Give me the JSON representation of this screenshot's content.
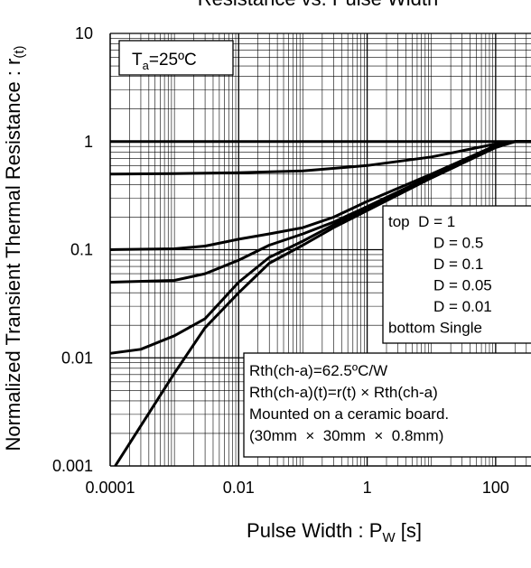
{
  "chart_data": {
    "type": "line",
    "title": "Resistance vs. Pulse Width",
    "xlabel": {
      "main": "Pulse Width : P",
      "sub": "W",
      "unit": " [s]"
    },
    "ylabel": {
      "main": "Normalized Transient Thermal Resistance : r",
      "sub": "(t)"
    },
    "x_scale": "log",
    "y_scale": "log",
    "xlim": [
      0.0001,
      1000
    ],
    "ylim": [
      0.001,
      10
    ],
    "x_ticks": [
      "0.0001",
      "0.01",
      "1",
      "100"
    ],
    "y_ticks": [
      "0.001",
      "0.01",
      "0.1",
      "1",
      "10"
    ],
    "grid": true,
    "condition": {
      "main": "T",
      "sub": "a",
      "rest": "=25ºC"
    },
    "legend": {
      "placement": "right",
      "lines": [
        "top  D = 1",
        "D = 0.5",
        "D = 0.1",
        "D = 0.05",
        "D = 0.01",
        "bottom Single"
      ]
    },
    "notes": [
      "Rth(ch-a)=62.5ºC/W",
      "Rth(ch-a)(t)=r(t) × Rth(ch-a)",
      "Mounted on a ceramic board.",
      "(30mm  ×  30mm  ×  0.8mm)"
    ],
    "series": [
      {
        "x": [
          0.0001,
          1000
        ],
        "y": [
          1,
          1
        ]
      },
      {
        "x": [
          0.0001,
          0.001,
          0.01,
          0.1,
          1,
          10,
          100,
          200,
          1000
        ],
        "y": [
          0.5,
          0.505,
          0.515,
          0.535,
          0.6,
          0.72,
          0.95,
          1,
          1
        ]
      },
      {
        "x": [
          0.0001,
          0.001,
          0.003,
          0.01,
          0.03,
          0.1,
          0.3,
          1,
          10,
          100,
          200,
          1000
        ],
        "y": [
          0.1,
          0.102,
          0.108,
          0.125,
          0.14,
          0.16,
          0.2,
          0.28,
          0.5,
          0.92,
          1,
          1
        ]
      },
      {
        "x": [
          0.0001,
          0.001,
          0.003,
          0.01,
          0.03,
          0.1,
          0.3,
          1,
          10,
          100,
          200,
          1000
        ],
        "y": [
          0.05,
          0.052,
          0.06,
          0.08,
          0.11,
          0.14,
          0.18,
          0.25,
          0.48,
          0.9,
          1,
          1
        ]
      },
      {
        "x": [
          0.0001,
          0.0003,
          0.001,
          0.003,
          0.01,
          0.03,
          0.1,
          0.3,
          1,
          10,
          100,
          200,
          1000
        ],
        "y": [
          0.011,
          0.012,
          0.016,
          0.023,
          0.05,
          0.085,
          0.12,
          0.17,
          0.24,
          0.47,
          0.9,
          1,
          1
        ]
      },
      {
        "x": [
          0.00012,
          0.001,
          0.003,
          0.01,
          0.03,
          0.1,
          0.3,
          1,
          10,
          100,
          200,
          1000
        ],
        "y": [
          0.001,
          0.0072,
          0.019,
          0.04,
          0.075,
          0.11,
          0.16,
          0.23,
          0.46,
          0.88,
          1,
          1
        ]
      }
    ]
  }
}
